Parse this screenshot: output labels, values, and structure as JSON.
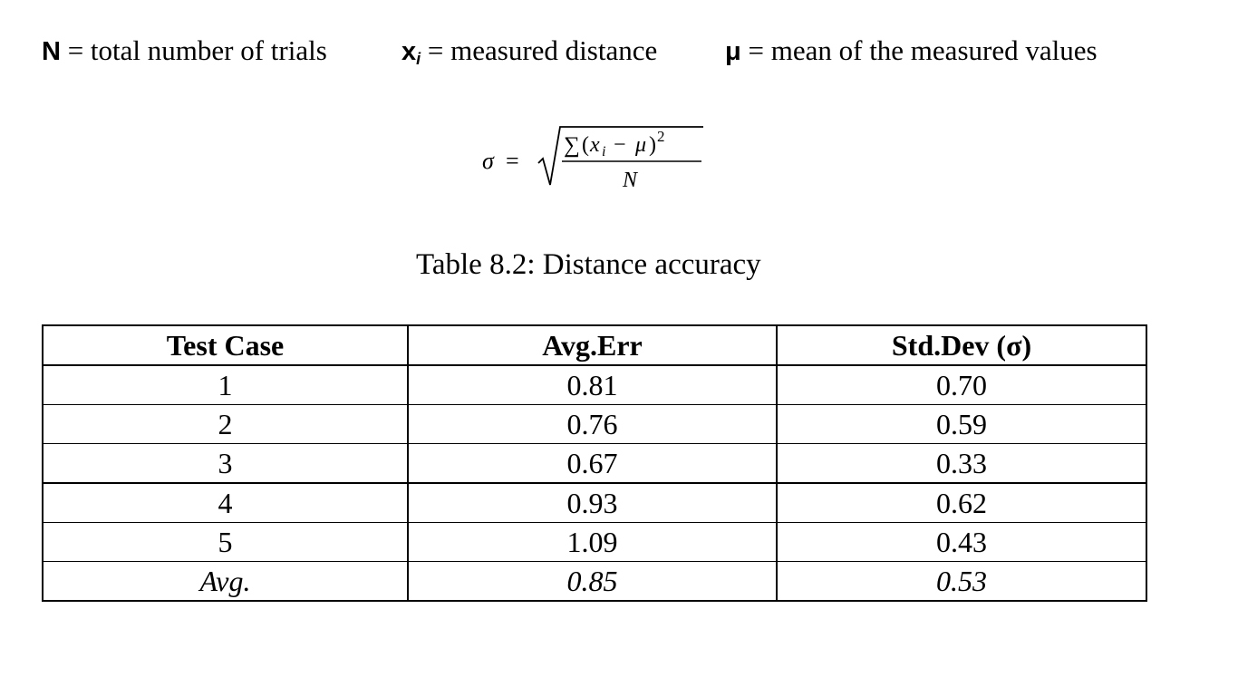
{
  "definitions": [
    {
      "symbol": "N",
      "subscript": "",
      "text": " = total number of trials"
    },
    {
      "symbol": "x",
      "subscript": "i",
      "text": " = measured distance"
    },
    {
      "symbol": "μ",
      "subscript": "",
      "text": " = mean of the measured values"
    }
  ],
  "formula": {
    "lhs": "σ",
    "equals": "=",
    "sum": "∑",
    "open": "(",
    "x": "x",
    "x_sub": "i",
    "minus": "−",
    "mu": "μ",
    "close": ")",
    "power": "2",
    "denominator": "N"
  },
  "caption": "Table 8.2: Distance accuracy",
  "table": {
    "headers": [
      "Test Case",
      "Avg.Err",
      "Std.Dev (σ)"
    ],
    "rows": [
      [
        "1",
        "0.81",
        "0.70"
      ],
      [
        "2",
        "0.76",
        "0.59"
      ],
      [
        "3",
        "0.67",
        "0.33"
      ],
      [
        "4",
        "0.93",
        "0.62"
      ],
      [
        "5",
        "1.09",
        "0.43"
      ]
    ],
    "average_row": [
      "Avg.",
      "0.85",
      "0.53"
    ]
  }
}
